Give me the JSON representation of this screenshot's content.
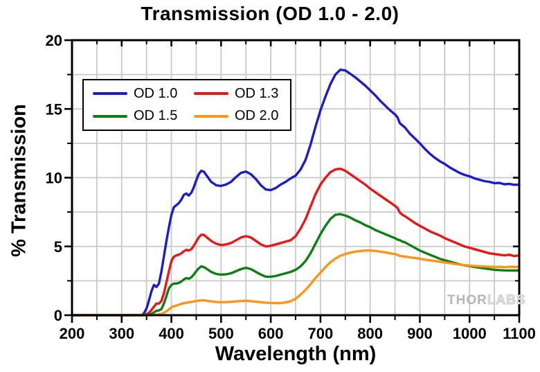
{
  "title": "Transmission (OD 1.0 - 2.0)",
  "watermark": {
    "part1": "THOR",
    "part2": "LABS"
  },
  "chart_data": {
    "type": "line",
    "title": "Transmission (OD 1.0 - 2.0)",
    "xlabel": "Wavelength (nm)",
    "ylabel": "% Transmission",
    "xlim": [
      200,
      1100
    ],
    "ylim": [
      0,
      20
    ],
    "x_major_tick": 100,
    "x_minor_tick": 50,
    "y_major_tick": 5,
    "y_minor_tick": 2.5,
    "grid": true,
    "grid_color": "#c9c9c9",
    "legend_position": "upper-left-inside",
    "x": [
      200,
      250,
      300,
      330,
      340,
      345,
      350,
      355,
      360,
      365,
      370,
      375,
      380,
      385,
      390,
      395,
      400,
      405,
      410,
      415,
      420,
      425,
      430,
      435,
      440,
      445,
      450,
      455,
      460,
      465,
      470,
      480,
      490,
      500,
      510,
      520,
      530,
      540,
      550,
      560,
      570,
      580,
      590,
      600,
      610,
      620,
      630,
      640,
      650,
      660,
      670,
      680,
      690,
      700,
      710,
      720,
      730,
      740,
      750,
      760,
      770,
      780,
      790,
      800,
      810,
      820,
      830,
      840,
      850,
      855,
      860,
      865,
      870,
      880,
      890,
      900,
      910,
      920,
      930,
      940,
      950,
      960,
      970,
      980,
      990,
      1000,
      1010,
      1020,
      1030,
      1040,
      1050,
      1060,
      1070,
      1080,
      1090,
      1100
    ],
    "series": [
      {
        "name": "OD 1.0",
        "color": "#1b1bce",
        "values": [
          0,
          0,
          0,
          0,
          0.0,
          0.15,
          0.5,
          1.1,
          1.75,
          2.2,
          2.05,
          2.3,
          3.2,
          4.3,
          5.4,
          6.4,
          7.3,
          7.85,
          8.0,
          8.15,
          8.4,
          8.75,
          8.85,
          8.7,
          8.9,
          9.3,
          9.8,
          10.25,
          10.5,
          10.45,
          10.2,
          9.7,
          9.45,
          9.4,
          9.5,
          9.7,
          10.05,
          10.35,
          10.45,
          10.25,
          9.9,
          9.45,
          9.15,
          9.1,
          9.25,
          9.5,
          9.7,
          9.95,
          10.15,
          10.6,
          11.3,
          12.4,
          13.7,
          14.9,
          15.9,
          16.8,
          17.5,
          17.85,
          17.8,
          17.55,
          17.3,
          17.0,
          16.7,
          16.35,
          16.0,
          15.6,
          15.25,
          14.9,
          14.6,
          14.4,
          13.95,
          13.8,
          13.65,
          13.2,
          12.85,
          12.5,
          12.1,
          11.75,
          11.45,
          11.2,
          11.0,
          10.75,
          10.55,
          10.35,
          10.2,
          10.1,
          9.95,
          9.85,
          9.75,
          9.7,
          9.6,
          9.62,
          9.52,
          9.55,
          9.48,
          9.5
        ]
      },
      {
        "name": "OD 1.3",
        "color": "#e81616",
        "values": [
          0,
          0,
          0,
          0,
          0,
          0.02,
          0.07,
          0.18,
          0.38,
          0.62,
          0.85,
          0.84,
          1.05,
          1.6,
          2.4,
          3.2,
          3.95,
          4.25,
          4.35,
          4.4,
          4.5,
          4.65,
          4.75,
          4.7,
          4.8,
          5.05,
          5.35,
          5.65,
          5.85,
          5.85,
          5.7,
          5.4,
          5.2,
          5.1,
          5.15,
          5.25,
          5.45,
          5.65,
          5.75,
          5.65,
          5.4,
          5.15,
          5.0,
          5.05,
          5.15,
          5.25,
          5.35,
          5.45,
          5.75,
          6.3,
          7.0,
          7.9,
          8.8,
          9.5,
          10.0,
          10.4,
          10.6,
          10.65,
          10.5,
          10.25,
          10.0,
          9.75,
          9.5,
          9.2,
          8.95,
          8.7,
          8.45,
          8.2,
          7.95,
          7.8,
          7.45,
          7.3,
          7.2,
          6.95,
          6.7,
          6.5,
          6.3,
          6.1,
          5.95,
          5.8,
          5.6,
          5.45,
          5.3,
          5.15,
          5.0,
          4.9,
          4.8,
          4.7,
          4.6,
          4.5,
          4.45,
          4.4,
          4.35,
          4.4,
          4.3,
          4.35
        ]
      },
      {
        "name": "OD 1.5",
        "color": "#0e7d13",
        "values": [
          0,
          0,
          0,
          0,
          0,
          0,
          0.02,
          0.05,
          0.1,
          0.2,
          0.32,
          0.35,
          0.45,
          0.85,
          1.4,
          1.95,
          2.2,
          2.3,
          2.3,
          2.35,
          2.45,
          2.6,
          2.7,
          2.65,
          2.75,
          2.95,
          3.2,
          3.4,
          3.55,
          3.5,
          3.4,
          3.15,
          3.0,
          2.95,
          2.97,
          3.05,
          3.2,
          3.35,
          3.45,
          3.35,
          3.15,
          2.95,
          2.8,
          2.8,
          2.85,
          2.95,
          3.05,
          3.15,
          3.3,
          3.55,
          3.95,
          4.5,
          5.2,
          5.9,
          6.5,
          7.0,
          7.3,
          7.35,
          7.25,
          7.1,
          6.9,
          6.75,
          6.55,
          6.4,
          6.2,
          6.05,
          5.9,
          5.75,
          5.6,
          5.5,
          5.45,
          5.35,
          5.3,
          5.1,
          4.9,
          4.7,
          4.55,
          4.4,
          4.25,
          4.1,
          4.0,
          3.9,
          3.8,
          3.7,
          3.62,
          3.57,
          3.5,
          3.45,
          3.4,
          3.35,
          3.3,
          3.28,
          3.26,
          3.25,
          3.25,
          3.25
        ]
      },
      {
        "name": "OD 2.0",
        "color": "#ff9418",
        "values": [
          0,
          0,
          0,
          0,
          0,
          0,
          0,
          0,
          0,
          0.02,
          0.04,
          0.06,
          0.1,
          0.18,
          0.28,
          0.42,
          0.58,
          0.65,
          0.7,
          0.76,
          0.82,
          0.87,
          0.9,
          0.93,
          0.96,
          1.0,
          1.03,
          1.06,
          1.08,
          1.08,
          1.06,
          1.0,
          0.96,
          0.94,
          0.95,
          0.97,
          1.0,
          1.03,
          1.05,
          1.02,
          0.98,
          0.94,
          0.91,
          0.89,
          0.88,
          0.88,
          0.93,
          1.02,
          1.2,
          1.5,
          1.85,
          2.25,
          2.7,
          3.1,
          3.5,
          3.85,
          4.12,
          4.32,
          4.45,
          4.55,
          4.62,
          4.67,
          4.7,
          4.7,
          4.68,
          4.62,
          4.57,
          4.5,
          4.44,
          4.4,
          4.3,
          4.28,
          4.26,
          4.2,
          4.16,
          4.1,
          4.04,
          3.99,
          3.94,
          3.89,
          3.84,
          3.78,
          3.73,
          3.68,
          3.64,
          3.61,
          3.58,
          3.56,
          3.54,
          3.52,
          3.5,
          3.52,
          3.49,
          3.52,
          3.5,
          3.53
        ]
      }
    ]
  }
}
